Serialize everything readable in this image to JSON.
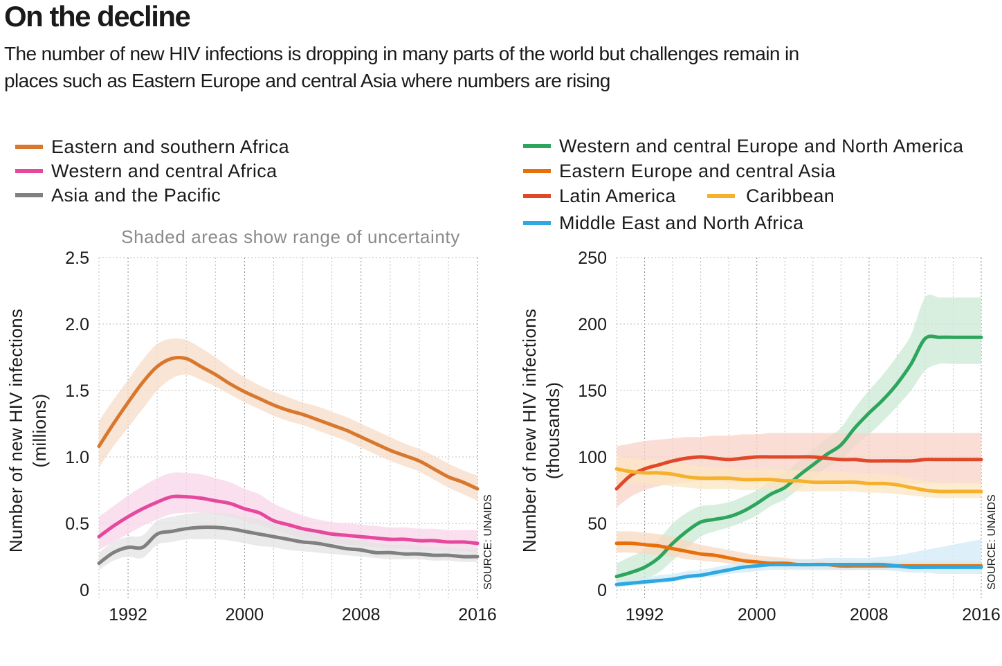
{
  "title": "On the decline",
  "subtitle": "The number of new HIV infections is dropping in many parts of the world but challenges remain in places such as Eastern Europe and central Asia where numbers are rising",
  "note": "Shaded areas show range of uncertainty",
  "source": "SOURCE: UNAIDS",
  "chart_data": [
    {
      "type": "line",
      "x": [
        1990,
        1991,
        1992,
        1993,
        1994,
        1995,
        1996,
        1997,
        1998,
        1999,
        2000,
        2001,
        2002,
        2003,
        2004,
        2005,
        2006,
        2007,
        2008,
        2009,
        2010,
        2011,
        2012,
        2013,
        2014,
        2015,
        2016
      ],
      "xticks": [
        "1992",
        "2000",
        "2008",
        "2016"
      ],
      "xlim": [
        1990,
        2016
      ],
      "ylim": [
        0,
        2.5
      ],
      "yticks": [
        "0",
        "0.5",
        "1.0",
        "1.5",
        "2.0",
        "2.5"
      ],
      "ylabel": "Number of new HIV infections",
      "ylabel_unit": "(millions)",
      "grid": true,
      "series": [
        {
          "name": "Eastern and southern Africa",
          "color": "#d8782e",
          "band": "#f7dcc8",
          "values": [
            1.08,
            1.25,
            1.41,
            1.56,
            1.68,
            1.74,
            1.74,
            1.68,
            1.62,
            1.55,
            1.49,
            1.44,
            1.39,
            1.35,
            1.32,
            1.28,
            1.24,
            1.2,
            1.15,
            1.1,
            1.05,
            1.01,
            0.97,
            0.91,
            0.85,
            0.81,
            0.76
          ],
          "lower": [
            0.92,
            1.08,
            1.22,
            1.36,
            1.5,
            1.59,
            1.62,
            1.58,
            1.53,
            1.47,
            1.41,
            1.36,
            1.31,
            1.27,
            1.24,
            1.2,
            1.16,
            1.12,
            1.07,
            1.02,
            0.97,
            0.93,
            0.89,
            0.83,
            0.77,
            0.72,
            0.67
          ],
          "upper": [
            1.27,
            1.43,
            1.58,
            1.73,
            1.85,
            1.89,
            1.88,
            1.82,
            1.75,
            1.67,
            1.6,
            1.54,
            1.49,
            1.45,
            1.41,
            1.38,
            1.34,
            1.3,
            1.25,
            1.2,
            1.15,
            1.1,
            1.06,
            1.01,
            0.95,
            0.9,
            0.86
          ]
        },
        {
          "name": "Western and central Africa",
          "color": "#e5489c",
          "band": "#f8d6ea",
          "values": [
            0.4,
            0.48,
            0.55,
            0.61,
            0.66,
            0.7,
            0.7,
            0.69,
            0.67,
            0.65,
            0.61,
            0.58,
            0.52,
            0.49,
            0.46,
            0.44,
            0.42,
            0.41,
            0.4,
            0.39,
            0.38,
            0.38,
            0.37,
            0.37,
            0.36,
            0.36,
            0.35
          ],
          "lower": [
            0.3,
            0.36,
            0.42,
            0.48,
            0.53,
            0.57,
            0.58,
            0.58,
            0.57,
            0.55,
            0.52,
            0.49,
            0.45,
            0.42,
            0.39,
            0.37,
            0.35,
            0.34,
            0.33,
            0.32,
            0.31,
            0.31,
            0.3,
            0.3,
            0.29,
            0.29,
            0.28
          ],
          "upper": [
            0.55,
            0.63,
            0.71,
            0.78,
            0.84,
            0.88,
            0.88,
            0.87,
            0.84,
            0.81,
            0.76,
            0.72,
            0.65,
            0.6,
            0.56,
            0.53,
            0.51,
            0.5,
            0.49,
            0.48,
            0.47,
            0.47,
            0.46,
            0.46,
            0.45,
            0.45,
            0.45
          ]
        },
        {
          "name": "Asia and the Pacific",
          "color": "#808080",
          "band": "#e3e3e3",
          "values": [
            0.2,
            0.28,
            0.32,
            0.32,
            0.42,
            0.44,
            0.46,
            0.47,
            0.47,
            0.46,
            0.44,
            0.42,
            0.4,
            0.38,
            0.36,
            0.35,
            0.33,
            0.31,
            0.3,
            0.28,
            0.28,
            0.27,
            0.27,
            0.26,
            0.26,
            0.25,
            0.25
          ],
          "lower": [
            0.15,
            0.22,
            0.25,
            0.24,
            0.34,
            0.36,
            0.38,
            0.38,
            0.38,
            0.37,
            0.35,
            0.33,
            0.32,
            0.3,
            0.29,
            0.28,
            0.27,
            0.26,
            0.25,
            0.24,
            0.23,
            0.23,
            0.23,
            0.22,
            0.22,
            0.21,
            0.21
          ],
          "upper": [
            0.28,
            0.36,
            0.4,
            0.41,
            0.52,
            0.55,
            0.57,
            0.58,
            0.58,
            0.57,
            0.55,
            0.53,
            0.5,
            0.47,
            0.45,
            0.43,
            0.41,
            0.38,
            0.37,
            0.35,
            0.34,
            0.34,
            0.33,
            0.32,
            0.32,
            0.31,
            0.31
          ]
        }
      ]
    },
    {
      "type": "line",
      "x": [
        1990,
        1991,
        1992,
        1993,
        1994,
        1995,
        1996,
        1997,
        1998,
        1999,
        2000,
        2001,
        2002,
        2003,
        2004,
        2005,
        2006,
        2007,
        2008,
        2009,
        2010,
        2011,
        2012,
        2013,
        2014,
        2015,
        2016
      ],
      "xticks": [
        "1992",
        "2000",
        "2008",
        "2016"
      ],
      "xlim": [
        1990,
        2016
      ],
      "ylim": [
        0,
        250
      ],
      "yticks": [
        "0",
        "50",
        "100",
        "150",
        "200",
        "250"
      ],
      "ylabel": "Number of new HIV infections",
      "ylabel_unit": "(thousands)",
      "grid": true,
      "series": [
        {
          "name": "Western and central Europe and North America",
          "color": "#2ea55c",
          "band": "#cbe9d5",
          "values": [
            10,
            13,
            17,
            24,
            35,
            44,
            51,
            53,
            55,
            59,
            65,
            72,
            77,
            86,
            94,
            102,
            109,
            122,
            133,
            143,
            155,
            170,
            189,
            190,
            190,
            190,
            190
          ],
          "lower": [
            3,
            5,
            8,
            13,
            22,
            31,
            40,
            44,
            47,
            51,
            56,
            63,
            68,
            76,
            84,
            92,
            98,
            108,
            117,
            127,
            138,
            150,
            165,
            170,
            170,
            170,
            170
          ],
          "upper": [
            20,
            25,
            30,
            38,
            50,
            58,
            63,
            64,
            66,
            70,
            75,
            82,
            88,
            97,
            106,
            114,
            122,
            137,
            150,
            162,
            176,
            192,
            220,
            220,
            220,
            220,
            220
          ]
        },
        {
          "name": "Eastern Europe and central Asia",
          "color": "#e8700a",
          "band": "#f7d8c0",
          "values": [
            35,
            35,
            34,
            33,
            31,
            29,
            27,
            26,
            24,
            22,
            21,
            20,
            20,
            19,
            19,
            19,
            18,
            18,
            18,
            18,
            18,
            18,
            18,
            18,
            18,
            18,
            18
          ],
          "lower": [
            28,
            28,
            27,
            26,
            25,
            23,
            22,
            21,
            20,
            18,
            17,
            17,
            16,
            16,
            16,
            16,
            15,
            15,
            15,
            15,
            15,
            15,
            15,
            15,
            15,
            15,
            15
          ],
          "upper": [
            44,
            44,
            43,
            42,
            40,
            37,
            34,
            32,
            30,
            28,
            26,
            25,
            24,
            23,
            23,
            22,
            22,
            22,
            22,
            22,
            22,
            22,
            22,
            22,
            22,
            22,
            22
          ]
        },
        {
          "name": "Latin America",
          "color": "#e0482a",
          "band": "#f8d3c8",
          "values": [
            76,
            86,
            91,
            94,
            97,
            99,
            100,
            99,
            98,
            99,
            100,
            100,
            100,
            100,
            100,
            99,
            98,
            98,
            97,
            97,
            97,
            97,
            98,
            98,
            98,
            98,
            98
          ],
          "lower": [
            62,
            70,
            75,
            78,
            80,
            81,
            82,
            82,
            81,
            81,
            81,
            81,
            81,
            81,
            81,
            80,
            80,
            80,
            80,
            80,
            80,
            80,
            80,
            80,
            80,
            80,
            80
          ],
          "upper": [
            108,
            110,
            112,
            113,
            114,
            115,
            115,
            116,
            116,
            117,
            117,
            118,
            118,
            118,
            118,
            118,
            118,
            118,
            118,
            118,
            118,
            118,
            118,
            118,
            118,
            118,
            118
          ]
        },
        {
          "name": "Caribbean",
          "color": "#f6b12c",
          "band": "#fbe6c2",
          "values": [
            91,
            89,
            88,
            88,
            87,
            85,
            84,
            84,
            84,
            83,
            83,
            83,
            82,
            82,
            81,
            81,
            81,
            81,
            80,
            80,
            79,
            77,
            75,
            74,
            74,
            74,
            74
          ],
          "lower": [
            82,
            80,
            80,
            79,
            78,
            77,
            76,
            76,
            76,
            75,
            75,
            75,
            75,
            74,
            74,
            74,
            74,
            74,
            73,
            73,
            72,
            71,
            70,
            69,
            69,
            69,
            69
          ],
          "upper": [
            101,
            99,
            98,
            97,
            96,
            94,
            93,
            92,
            92,
            91,
            91,
            91,
            90,
            90,
            89,
            89,
            89,
            88,
            88,
            87,
            86,
            84,
            82,
            81,
            81,
            81,
            81
          ]
        },
        {
          "name": "Middle East and North Africa",
          "color": "#2ea8e0",
          "band": "#d2ebf7",
          "values": [
            4,
            5,
            6,
            7,
            8,
            10,
            11,
            13,
            15,
            17,
            18,
            19,
            19,
            19,
            19,
            19,
            19,
            19,
            19,
            19,
            18,
            17,
            17,
            17,
            17,
            17,
            17
          ],
          "lower": [
            2,
            3,
            4,
            5,
            6,
            8,
            9,
            10,
            12,
            13,
            14,
            15,
            15,
            15,
            15,
            15,
            15,
            15,
            15,
            15,
            14,
            13,
            13,
            12,
            12,
            12,
            12
          ],
          "upper": [
            6,
            8,
            9,
            11,
            12,
            14,
            15,
            17,
            19,
            21,
            22,
            23,
            23,
            23,
            23,
            24,
            24,
            24,
            24,
            25,
            26,
            28,
            30,
            32,
            34,
            36,
            38
          ]
        }
      ]
    }
  ]
}
